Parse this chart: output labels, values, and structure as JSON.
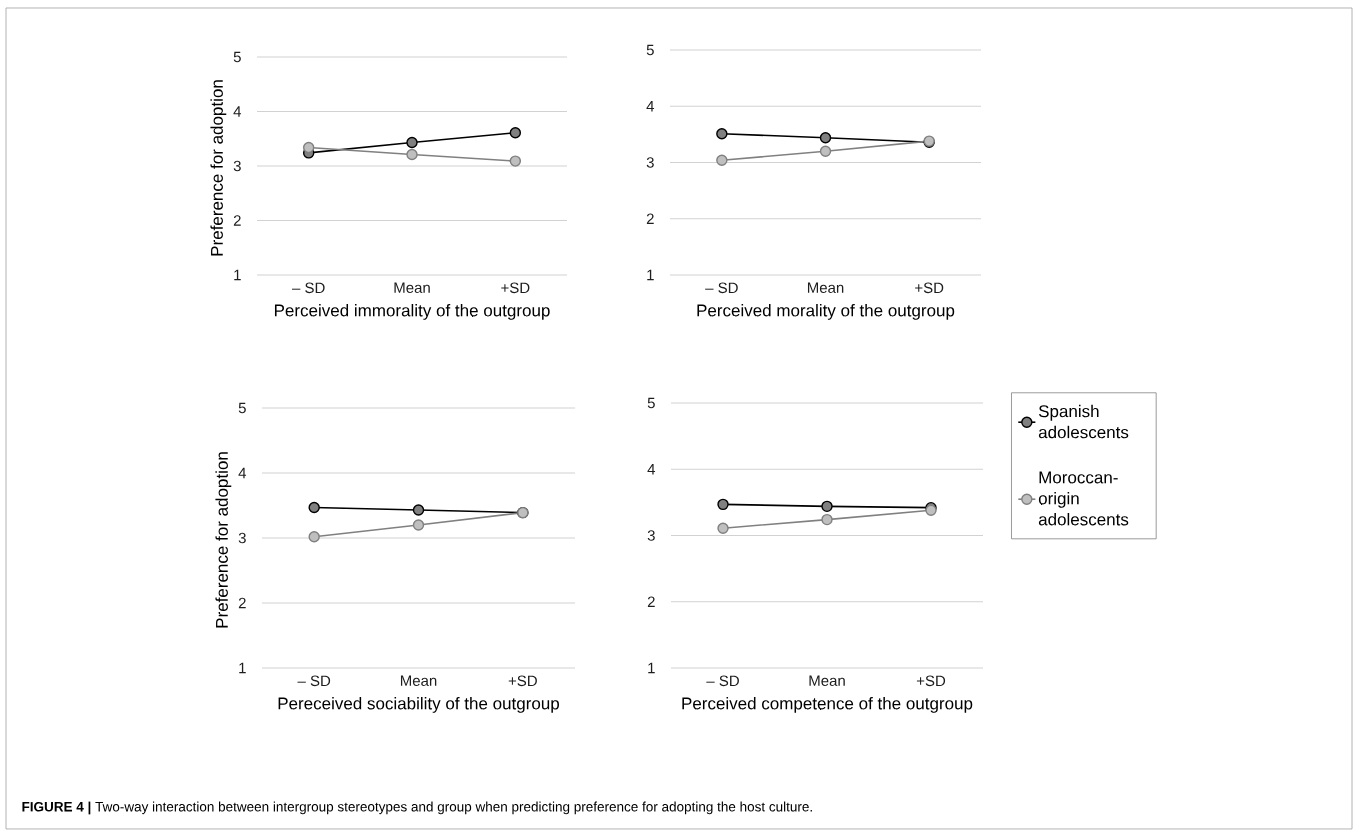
{
  "chart_data": [
    {
      "type": "line",
      "categories": [
        "– SD",
        "Mean",
        "+SD"
      ],
      "xlabel": "Perceived immorality of the outgroup",
      "ylabel": "Preference for adoption",
      "ylim": [
        1,
        5
      ],
      "yticks": [
        1,
        2,
        3,
        4,
        5
      ],
      "grid": "y",
      "marker": "circle",
      "line_style": "solid",
      "series": [
        {
          "color": "#000000",
          "values": [
            3.24,
            3.43,
            3.61
          ]
        },
        {
          "color": "#808080",
          "values": [
            3.34,
            3.21,
            3.09
          ]
        }
      ]
    },
    {
      "type": "line",
      "categories": [
        "– SD",
        "Mean",
        "+SD"
      ],
      "xlabel": "Perceived morality of the outgroup",
      "ylim": [
        1,
        5
      ],
      "yticks": [
        1,
        2,
        3,
        4,
        5
      ],
      "grid": "y",
      "marker": "circle",
      "line_style": "solid",
      "series": [
        {
          "color": "#000000",
          "values": [
            3.51,
            3.44,
            3.36
          ]
        },
        {
          "color": "#808080",
          "values": [
            3.04,
            3.2,
            3.38
          ]
        }
      ]
    },
    {
      "type": "line",
      "categories": [
        "– SD",
        "Mean",
        "+SD"
      ],
      "xlabel": "Pereceived sociability of the outgroup",
      "ylabel": "Preference for adoption",
      "ylim": [
        1,
        5
      ],
      "yticks": [
        1,
        2,
        3,
        4,
        5
      ],
      "grid": "y",
      "marker": "circle",
      "line_style": "solid",
      "series": [
        {
          "color": "#000000",
          "values": [
            3.47,
            3.43,
            3.39
          ]
        },
        {
          "color": "#808080",
          "values": [
            3.02,
            3.2,
            3.39
          ]
        }
      ]
    },
    {
      "type": "line",
      "categories": [
        "– SD",
        "Mean",
        "+SD"
      ],
      "xlabel": "Perceived competence of the outgroup",
      "ylim": [
        1,
        5
      ],
      "yticks": [
        1,
        2,
        3,
        4,
        5
      ],
      "grid": "y",
      "marker": "circle",
      "line_style": "solid",
      "legend": "right",
      "annotations": [
        "**FIGURE 4 |** Two-way interaction between intergroup stereotypes and group when predicting preference for adopting the host culture."
      ],
      "series": [
        {
          "name": "Spanish adolescents",
          "color": "#000000",
          "values": [
            3.47,
            3.44,
            3.42
          ]
        },
        {
          "name": "Moroccan-origin adolescents",
          "color": "#808080",
          "values": [
            3.11,
            3.24,
            3.38
          ]
        }
      ]
    }
  ]
}
